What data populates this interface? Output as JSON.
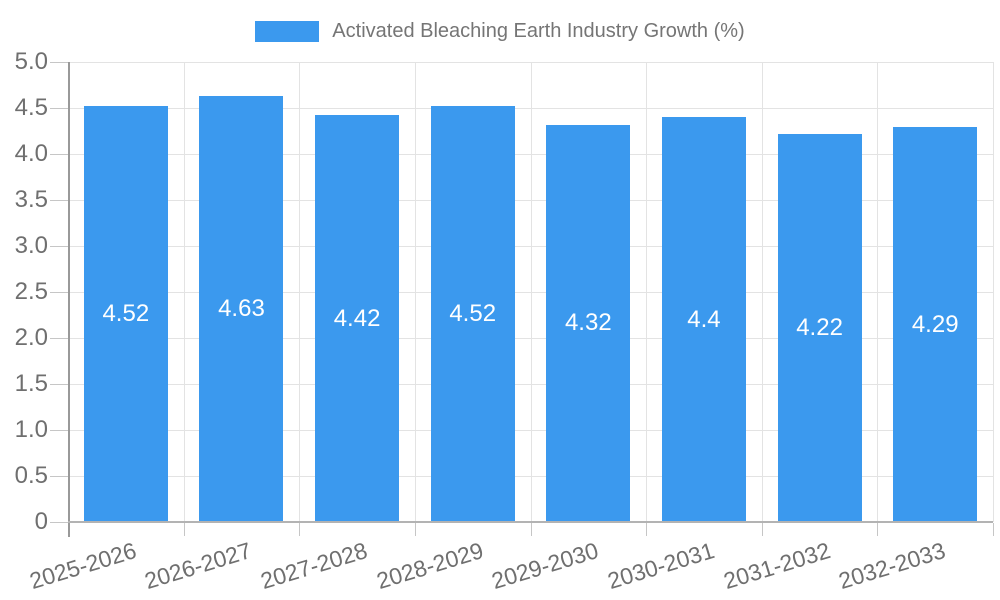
{
  "legend": {
    "label": "Activated Bleaching Earth Industry Growth (%)"
  },
  "chart_data": {
    "type": "bar",
    "title": "Activated Bleaching Earth Industry Growth (%)",
    "categories": [
      "2025-2026",
      "2026-2027",
      "2027-2028",
      "2028-2029",
      "2029-2030",
      "2030-2031",
      "2031-2032",
      "2032-2033"
    ],
    "values": [
      4.52,
      4.63,
      4.42,
      4.52,
      4.32,
      4.4,
      4.22,
      4.29
    ],
    "value_labels": [
      "4.52",
      "4.63",
      "4.42",
      "4.52",
      "4.32",
      "4.4",
      "4.22",
      "4.29"
    ],
    "xlabel": "",
    "ylabel": "",
    "ylim": [
      0,
      5
    ],
    "ytick_step": 0.5,
    "ytick_labels": [
      "0",
      "0.5",
      "1.0",
      "1.5",
      "2.0",
      "2.5",
      "3.0",
      "3.5",
      "4.0",
      "4.5",
      "5.0"
    ],
    "grid": true,
    "legend_position": "top",
    "colors": {
      "bar": "#3B99EE",
      "value_label": "#FFFFFF",
      "axis_text": "#6F6F6F",
      "legend_text": "#757575",
      "gridline": "#E3E3E3",
      "axis_line": "#999999",
      "baseline": "#B3B3B3",
      "tick": "#C6C6C6",
      "background": "#FFFFFF"
    }
  }
}
